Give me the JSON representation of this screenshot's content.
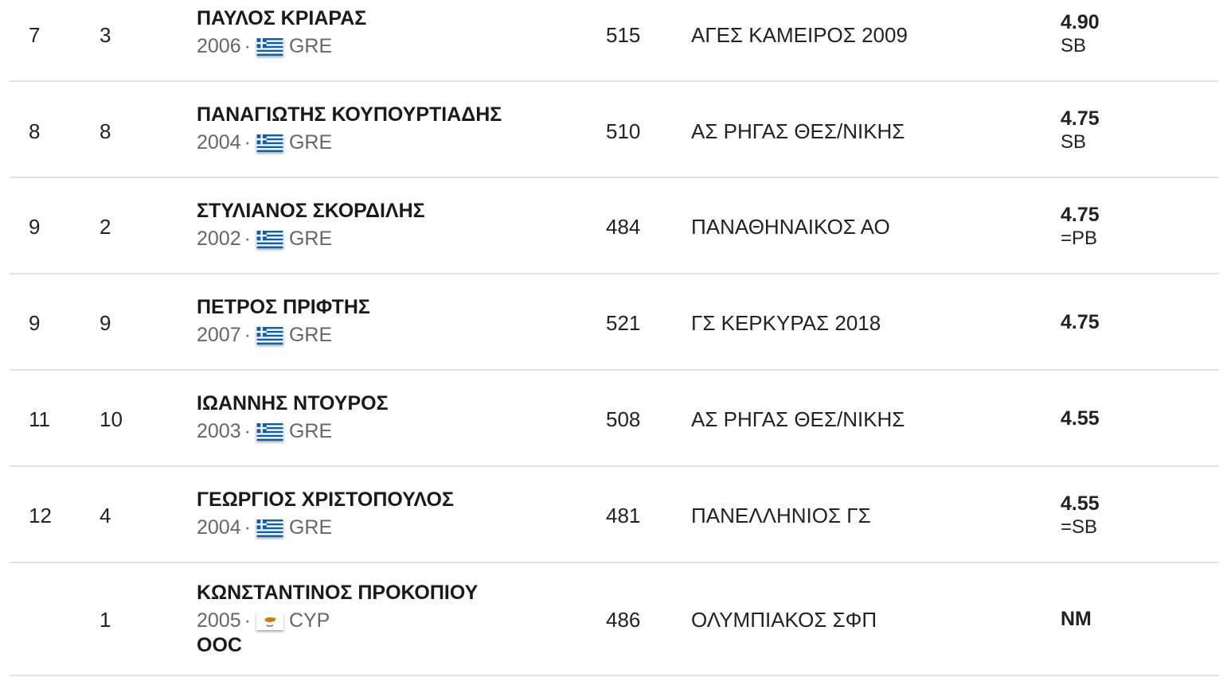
{
  "rows": [
    {
      "pos": "7",
      "bib": "3",
      "name": "ΠΑΥΛΟΣ ΚΡΙΑΡΑΣ",
      "year": "2006",
      "country": "GRE",
      "flag": "greece-flag-icon",
      "points": "515",
      "club": "ΑΓΕΣ ΚΑΜΕΙΡΟΣ 2009",
      "mark": "4.90",
      "note": "SB",
      "ooc": ""
    },
    {
      "pos": "8",
      "bib": "8",
      "name": "ΠΑΝΑΓΙΩΤΗΣ ΚΟΥΠΟΥΡΤΙΑΔΗΣ",
      "year": "2004",
      "country": "GRE",
      "flag": "greece-flag-icon",
      "points": "510",
      "club": "ΑΣ ΡΗΓΑΣ ΘΕΣ/ΝΙΚΗΣ",
      "mark": "4.75",
      "note": "SB",
      "ooc": ""
    },
    {
      "pos": "9",
      "bib": "2",
      "name": "ΣΤΥΛΙΑΝΟΣ ΣΚΟΡΔΙΛΗΣ",
      "year": "2002",
      "country": "GRE",
      "flag": "greece-flag-icon",
      "points": "484",
      "club": "ΠΑΝΑΘΗΝΑΙΚΟΣ ΑΟ",
      "mark": "4.75",
      "note": "=PB",
      "ooc": ""
    },
    {
      "pos": "9",
      "bib": "9",
      "name": "ΠΕΤΡΟΣ ΠΡΙΦΤΗΣ",
      "year": "2007",
      "country": "GRE",
      "flag": "greece-flag-icon",
      "points": "521",
      "club": "ΓΣ ΚΕΡΚΥΡΑΣ 2018",
      "mark": "4.75",
      "note": "",
      "ooc": ""
    },
    {
      "pos": "11",
      "bib": "10",
      "name": "ΙΩΑΝΝΗΣ ΝΤΟΥΡΟΣ",
      "year": "2003",
      "country": "GRE",
      "flag": "greece-flag-icon",
      "points": "508",
      "club": "ΑΣ ΡΗΓΑΣ ΘΕΣ/ΝΙΚΗΣ",
      "mark": "4.55",
      "note": "",
      "ooc": ""
    },
    {
      "pos": "12",
      "bib": "4",
      "name": "ΓΕΩΡΓΙΟΣ ΧΡΙΣΤΟΠΟΥΛΟΣ",
      "year": "2004",
      "country": "GRE",
      "flag": "greece-flag-icon",
      "points": "481",
      "club": "ΠΑΝΕΛΛΗΝΙΟΣ ΓΣ",
      "mark": "4.55",
      "note": "=SB",
      "ooc": ""
    },
    {
      "pos": "",
      "bib": "1",
      "name": "ΚΩΝΣΤΑΝΤΙΝΟΣ ΠΡΟΚΟΠΙΟΥ",
      "year": "2005",
      "country": "CYP",
      "flag": "cyprus-flag-icon",
      "points": "486",
      "club": "ΟΛΥΜΠΙΑΚΟΣ ΣΦΠ",
      "mark": "NM",
      "note": "",
      "ooc": "OOC"
    }
  ]
}
